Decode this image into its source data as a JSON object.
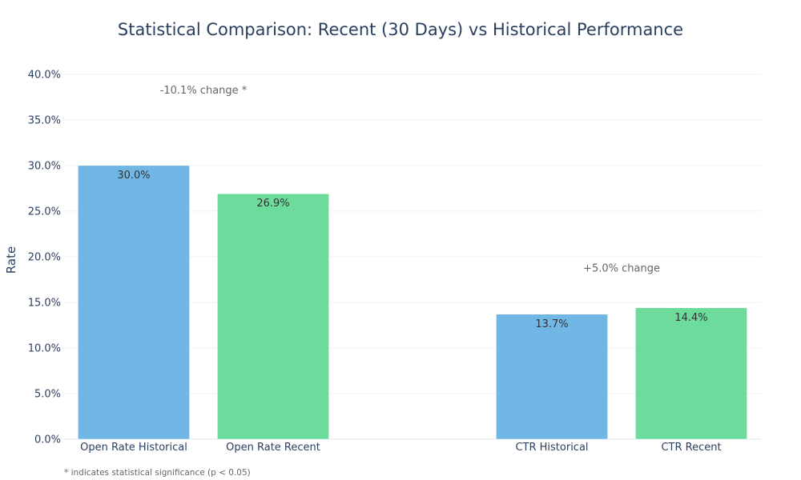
{
  "chart_data": {
    "type": "bar",
    "title": "Statistical Comparison: Recent (30 Days) vs Historical Performance",
    "ylabel": "Rate",
    "xlabel": "",
    "ylim": [
      0,
      0.42
    ],
    "yticks": [
      0,
      0.05,
      0.1,
      0.15,
      0.2,
      0.25,
      0.3,
      0.35,
      0.4
    ],
    "ytick_labels": [
      "0.0%",
      "5.0%",
      "10.0%",
      "15.0%",
      "20.0%",
      "25.0%",
      "30.0%",
      "35.0%",
      "40.0%"
    ],
    "grid": true,
    "categories": [
      "Open Rate Historical",
      "Open Rate Recent",
      "",
      "CTR Historical",
      "CTR Recent"
    ],
    "bars": [
      {
        "category": "Open Rate Historical",
        "value": 0.3,
        "label": "30.0%",
        "color": "#5DADE2"
      },
      {
        "category": "Open Rate Recent",
        "value": 0.269,
        "label": "26.9%",
        "color": "#58D68D"
      },
      {
        "category": "CTR Historical",
        "value": 0.137,
        "label": "13.7%",
        "color": "#5DADE2"
      },
      {
        "category": "CTR Recent",
        "value": 0.144,
        "label": "14.4%",
        "color": "#58D68D"
      }
    ],
    "annotations": [
      {
        "text": "-10.1% change *",
        "x_between": [
          "Open Rate Historical",
          "Open Rate Recent"
        ],
        "y": 0.383
      },
      {
        "text": "+5.0% change",
        "x_between": [
          "CTR Historical",
          "CTR Recent"
        ],
        "y": 0.188
      }
    ],
    "footnote": "* indicates statistical significance (p < 0.05)"
  },
  "colors": {
    "historical": "#5DADE2",
    "recent": "#58D68D",
    "text": "#2a3f5f"
  }
}
